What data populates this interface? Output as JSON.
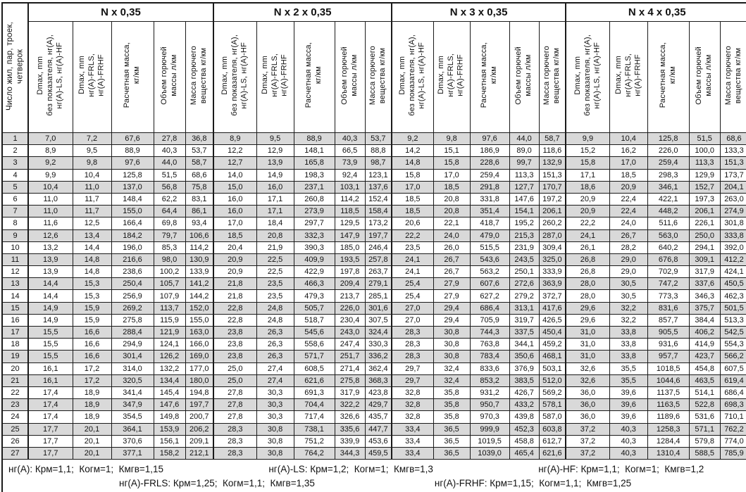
{
  "table": {
    "corner_header": "Число жил, пар, троек,\nчетверок",
    "groups": [
      "N x 0,35",
      "N x 2 x 0,35",
      "N x 3 x 0,35",
      "N x 4 x 0,35"
    ],
    "sub_headers": [
      "Dmax, mm\nбез показателя, нг(A),\nнг(A)-LS, нг(A)-HF",
      "Dmax, mm\nнг(A)-FRLS,\nнг(A)-FRHF",
      "Расчетная масса,\nкг/км",
      "Объем горючей\nмассы л/км",
      "Масса горючего\nвещества кг/км"
    ],
    "rows": [
      [
        "1",
        "7,0",
        "7,2",
        "67,6",
        "27,8",
        "36,8",
        "8,9",
        "9,5",
        "88,9",
        "40,3",
        "53,7",
        "9,2",
        "9,8",
        "97,6",
        "44,0",
        "58,7",
        "9,9",
        "10,4",
        "125,8",
        "51,5",
        "68,6"
      ],
      [
        "2",
        "8,9",
        "9,5",
        "88,9",
        "40,3",
        "53,7",
        "12,2",
        "12,9",
        "148,1",
        "66,5",
        "88,8",
        "14,2",
        "15,1",
        "186,9",
        "89,0",
        "118,6",
        "15,2",
        "16,2",
        "226,0",
        "100,0",
        "133,3"
      ],
      [
        "3",
        "9,2",
        "9,8",
        "97,6",
        "44,0",
        "58,7",
        "12,7",
        "13,9",
        "165,8",
        "73,9",
        "98,7",
        "14,8",
        "15,8",
        "228,6",
        "99,7",
        "132,9",
        "15,8",
        "17,0",
        "259,4",
        "113,3",
        "151,3"
      ],
      [
        "4",
        "9,9",
        "10,4",
        "125,8",
        "51,5",
        "68,6",
        "14,0",
        "14,9",
        "198,3",
        "92,4",
        "123,1",
        "15,8",
        "17,0",
        "259,4",
        "113,3",
        "151,3",
        "17,1",
        "18,5",
        "298,3",
        "129,9",
        "173,7"
      ],
      [
        "5",
        "10,4",
        "11,0",
        "137,0",
        "56,8",
        "75,8",
        "15,0",
        "16,0",
        "237,1",
        "103,1",
        "137,6",
        "17,0",
        "18,5",
        "291,8",
        "127,7",
        "170,7",
        "18,6",
        "20,9",
        "346,1",
        "152,7",
        "204,1"
      ],
      [
        "6",
        "11,0",
        "11,7",
        "148,4",
        "62,2",
        "83,1",
        "16,0",
        "17,1",
        "260,8",
        "114,2",
        "152,4",
        "18,5",
        "20,8",
        "331,8",
        "147,6",
        "197,2",
        "20,9",
        "22,4",
        "422,1",
        "197,3",
        "263,0"
      ],
      [
        "7",
        "11,0",
        "11,7",
        "155,0",
        "64,4",
        "86,1",
        "16,0",
        "17,1",
        "273,9",
        "118,5",
        "158,4",
        "18,5",
        "20,8",
        "351,4",
        "154,1",
        "206,1",
        "20,9",
        "22,4",
        "448,2",
        "206,1",
        "274,9"
      ],
      [
        "8",
        "11,6",
        "12,5",
        "166,4",
        "69,8",
        "93,4",
        "17,0",
        "18,4",
        "297,7",
        "129,5",
        "173,2",
        "20,6",
        "22,1",
        "418,7",
        "195,2",
        "260,2",
        "22,2",
        "24,0",
        "511,6",
        "226,1",
        "301,8"
      ],
      [
        "9",
        "12,6",
        "13,4",
        "184,2",
        "79,7",
        "106,6",
        "18,5",
        "20,8",
        "332,3",
        "147,9",
        "197,7",
        "22,2",
        "24,0",
        "479,0",
        "215,3",
        "287,0",
        "24,1",
        "26,7",
        "563,0",
        "250,0",
        "333,8"
      ],
      [
        "10",
        "13,2",
        "14,4",
        "196,0",
        "85,3",
        "114,2",
        "20,4",
        "21,9",
        "390,3",
        "185,0",
        "246,4",
        "23,5",
        "26,0",
        "515,5",
        "231,9",
        "309,4",
        "26,1",
        "28,2",
        "640,2",
        "294,1",
        "392,0"
      ],
      [
        "11",
        "13,9",
        "14,8",
        "216,6",
        "98,0",
        "130,9",
        "20,9",
        "22,5",
        "409,9",
        "193,5",
        "257,8",
        "24,1",
        "26,7",
        "543,6",
        "243,5",
        "325,0",
        "26,8",
        "29,0",
        "676,8",
        "309,1",
        "412,2"
      ],
      [
        "12",
        "13,9",
        "14,8",
        "238,6",
        "100,2",
        "133,9",
        "20,9",
        "22,5",
        "422,9",
        "197,8",
        "263,7",
        "24,1",
        "26,7",
        "563,2",
        "250,1",
        "333,9",
        "26,8",
        "29,0",
        "702,9",
        "317,9",
        "424,1"
      ],
      [
        "13",
        "14,4",
        "15,3",
        "250,4",
        "105,7",
        "141,2",
        "21,8",
        "23,5",
        "466,3",
        "209,4",
        "279,1",
        "25,4",
        "27,9",
        "607,6",
        "272,6",
        "363,9",
        "28,0",
        "30,5",
        "747,2",
        "337,6",
        "450,5"
      ],
      [
        "14",
        "14,4",
        "15,3",
        "256,9",
        "107,9",
        "144,2",
        "21,8",
        "23,5",
        "479,3",
        "213,7",
        "285,1",
        "25,4",
        "27,9",
        "627,2",
        "279,2",
        "372,7",
        "28,0",
        "30,5",
        "773,3",
        "346,3",
        "462,3"
      ],
      [
        "15",
        "14,9",
        "15,9",
        "269,2",
        "113,7",
        "152,0",
        "22,8",
        "24,8",
        "505,7",
        "226,0",
        "301,6",
        "27,0",
        "29,4",
        "686,4",
        "313,1",
        "417,6",
        "29,6",
        "32,2",
        "831,6",
        "375,7",
        "501,5"
      ],
      [
        "16",
        "14,9",
        "15,9",
        "275,8",
        "115,9",
        "155,0",
        "22,8",
        "24,8",
        "518,7",
        "230,4",
        "307,5",
        "27,0",
        "29,4",
        "705,9",
        "319,7",
        "426,5",
        "29,6",
        "32,2",
        "857,7",
        "384,4",
        "513,3"
      ],
      [
        "17",
        "15,5",
        "16,6",
        "288,4",
        "121,9",
        "163,0",
        "23,8",
        "26,3",
        "545,6",
        "243,0",
        "324,4",
        "28,3",
        "30,8",
        "744,3",
        "337,5",
        "450,4",
        "31,0",
        "33,8",
        "905,5",
        "406,2",
        "542,5"
      ],
      [
        "18",
        "15,5",
        "16,6",
        "294,9",
        "124,1",
        "166,0",
        "23,8",
        "26,3",
        "558,6",
        "247,4",
        "330,3",
        "28,3",
        "30,8",
        "763,8",
        "344,1",
        "459,2",
        "31,0",
        "33,8",
        "931,6",
        "414,9",
        "554,3"
      ],
      [
        "19",
        "15,5",
        "16,6",
        "301,4",
        "126,2",
        "169,0",
        "23,8",
        "26,3",
        "571,7",
        "251,7",
        "336,2",
        "28,3",
        "30,8",
        "783,4",
        "350,6",
        "468,1",
        "31,0",
        "33,8",
        "957,7",
        "423,7",
        "566,2"
      ],
      [
        "20",
        "16,1",
        "17,2",
        "314,0",
        "132,2",
        "177,0",
        "25,0",
        "27,4",
        "608,5",
        "271,4",
        "362,4",
        "29,7",
        "32,4",
        "833,6",
        "376,9",
        "503,1",
        "32,6",
        "35,5",
        "1018,5",
        "454,8",
        "607,5"
      ],
      [
        "21",
        "16,1",
        "17,2",
        "320,5",
        "134,4",
        "180,0",
        "25,0",
        "27,4",
        "621,6",
        "275,8",
        "368,3",
        "29,7",
        "32,4",
        "853,2",
        "383,5",
        "512,0",
        "32,6",
        "35,5",
        "1044,6",
        "463,5",
        "619,4"
      ],
      [
        "22",
        "17,4",
        "18,9",
        "341,4",
        "145,4",
        "194,8",
        "27,8",
        "30,3",
        "691,3",
        "317,9",
        "423,8",
        "32,8",
        "35,8",
        "931,2",
        "426,7",
        "569,2",
        "36,0",
        "39,6",
        "1137,5",
        "514,1",
        "686,4"
      ],
      [
        "23",
        "17,4",
        "18,9",
        "347,9",
        "147,6",
        "197,7",
        "27,8",
        "30,3",
        "704,4",
        "322,2",
        "429,7",
        "32,8",
        "35,8",
        "950,7",
        "433,2",
        "578,1",
        "36,0",
        "39,6",
        "1163,5",
        "522,8",
        "698,3"
      ],
      [
        "24",
        "17,4",
        "18,9",
        "354,5",
        "149,8",
        "200,7",
        "27,8",
        "30,3",
        "717,4",
        "326,6",
        "435,7",
        "32,8",
        "35,8",
        "970,3",
        "439,8",
        "587,0",
        "36,0",
        "39,6",
        "1189,6",
        "531,6",
        "710,1"
      ],
      [
        "25",
        "17,7",
        "20,1",
        "364,1",
        "153,9",
        "206,2",
        "28,3",
        "30,8",
        "738,1",
        "335,6",
        "447,7",
        "33,4",
        "36,5",
        "999,9",
        "452,3",
        "603,8",
        "37,2",
        "40,3",
        "1258,3",
        "571,1",
        "762,2"
      ],
      [
        "26",
        "17,7",
        "20,1",
        "370,6",
        "156,1",
        "209,1",
        "28,3",
        "30,8",
        "751,2",
        "339,9",
        "453,6",
        "33,4",
        "36,5",
        "1019,5",
        "458,8",
        "612,7",
        "37,2",
        "40,3",
        "1284,4",
        "579,8",
        "774,0"
      ],
      [
        "27",
        "17,7",
        "20,1",
        "377,1",
        "158,2",
        "212,1",
        "28,3",
        "30,8",
        "764,2",
        "344,3",
        "459,5",
        "33,4",
        "36,5",
        "1039,0",
        "465,4",
        "621,6",
        "37,2",
        "40,3",
        "1310,4",
        "588,5",
        "785,9"
      ]
    ]
  },
  "footer": {
    "line1": [
      "нг(A): Крм=1,1;  Когм=1;  Кмгв=1,15",
      "нг(A)-LS: Крм=1,2;  Когм=1;  Кмгв=1,3",
      "нг(A)-HF: Крм=1,1;  Когм=1;  Кмгв=1,2"
    ],
    "line2": [
      "нг(A)-FRLS: Крм=1,25;  Когм=1,1;  Кмгв=1,35",
      "нг(A)-FRHF: Крм=1,15;  Когм=1,1;  Кмгв=1,25"
    ]
  },
  "colors": {
    "row_stripe": "#d9d9d9",
    "border": "#1a1a1a",
    "background": "#ffffff"
  }
}
